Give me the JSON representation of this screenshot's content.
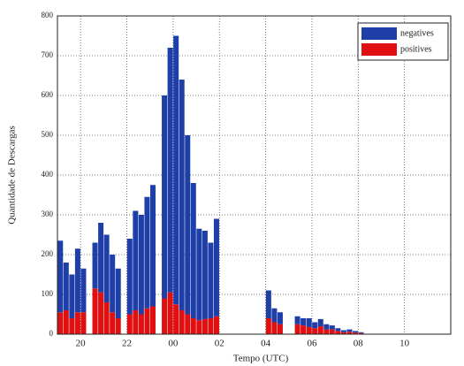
{
  "chart_data": {
    "type": "stacked_bar",
    "x_label": "Tempo (UTC)",
    "y_label": "Quantidade de Descargas",
    "x": [
      19.125,
      19.375,
      19.625,
      19.875,
      20.125,
      20.625,
      20.875,
      21.125,
      21.375,
      21.625,
      22.125,
      22.375,
      22.625,
      22.875,
      23.125,
      23.625,
      23.875,
      24.125,
      24.375,
      24.625,
      24.875,
      25.125,
      25.375,
      25.625,
      25.875,
      28.125,
      28.375,
      28.625,
      29.375,
      29.625,
      29.875,
      30.125,
      30.375,
      30.625,
      30.875,
      31.125,
      31.375,
      31.625,
      31.875,
      32.125
    ],
    "series": [
      {
        "name": "negatives",
        "color": "#1f3fa8",
        "values": [
          180,
          120,
          110,
          160,
          110,
          115,
          175,
          170,
          145,
          125,
          190,
          250,
          250,
          280,
          305,
          510,
          615,
          675,
          580,
          450,
          340,
          230,
          222,
          190,
          245,
          70,
          35,
          30,
          20,
          18,
          22,
          15,
          18,
          13,
          10,
          7,
          5,
          6,
          4,
          2
        ]
      },
      {
        "name": "positives",
        "color": "#e01010",
        "values": [
          55,
          60,
          40,
          55,
          55,
          115,
          105,
          80,
          55,
          40,
          50,
          60,
          50,
          65,
          70,
          90,
          105,
          75,
          60,
          50,
          40,
          35,
          38,
          40,
          45,
          40,
          30,
          25,
          25,
          22,
          18,
          15,
          20,
          12,
          12,
          8,
          5,
          6,
          4,
          3
        ]
      }
    ],
    "xlim": [
      19,
      36
    ],
    "xticks": [
      {
        "value": 20,
        "label": "20"
      },
      {
        "value": 22,
        "label": "22"
      },
      {
        "value": 24,
        "label": "00"
      },
      {
        "value": 26,
        "label": "02"
      },
      {
        "value": 28,
        "label": "04"
      },
      {
        "value": 30,
        "label": "06"
      },
      {
        "value": 32,
        "label": "08"
      },
      {
        "value": 34,
        "label": "10"
      }
    ],
    "ylim": [
      0,
      800
    ],
    "yticks": [
      0,
      100,
      200,
      300,
      400,
      500,
      600,
      700,
      800
    ],
    "grid": true,
    "legend": "upper right"
  }
}
